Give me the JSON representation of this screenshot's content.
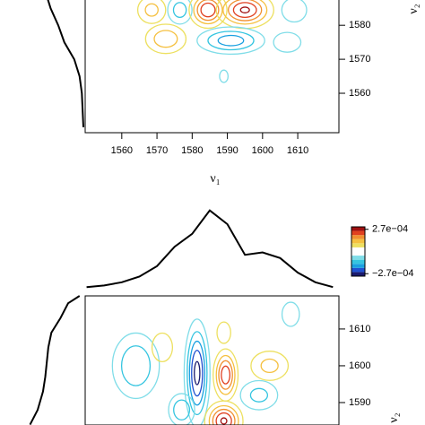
{
  "chart_data": [
    {
      "type": "contour",
      "xlabel": "ν₁",
      "ylabel": "ν₂",
      "xlim": [
        1549.6,
        1621.7
      ],
      "ylim": [
        1548.4,
        1590.6
      ],
      "xticks": [
        1560,
        1570,
        1580,
        1590,
        1600,
        1610
      ],
      "yticks": [
        1560,
        1570,
        1580
      ],
      "levels": [
        -0.00025,
        -0.0002,
        -0.00015,
        -0.0001,
        -5e-05,
        5e-05,
        0.0001,
        0.00015,
        0.0002,
        0.00025
      ],
      "level_colors": [
        "#1a1a6e",
        "#2050d0",
        "#1aa0e0",
        "#35c5e0",
        "#80dde8",
        "#ede060",
        "#f5c040",
        "#f09030",
        "#e04020",
        "#a01010"
      ],
      "peaks": [
        {
          "x": 1568.5,
          "y": 1584.5,
          "amp": 0.00012,
          "wx": 3,
          "wy": 3
        },
        {
          "x": 1576.5,
          "y": 1584.5,
          "amp": -0.00013,
          "wx": 2.5,
          "wy": 3
        },
        {
          "x": 1584.5,
          "y": 1584.5,
          "amp": 0.00025,
          "wx": 3,
          "wy": 3
        },
        {
          "x": 1595,
          "y": 1584.5,
          "amp": 0.00026,
          "wx": 4.5,
          "wy": 3
        },
        {
          "x": 1609,
          "y": 1584.5,
          "amp": -0.0001,
          "wx": 3,
          "wy": 3
        },
        {
          "x": 1572.5,
          "y": 1576,
          "amp": 0.00014,
          "wx": 4,
          "wy": 3
        },
        {
          "x": 1591,
          "y": 1575.5,
          "amp": -0.00018,
          "wx": 6,
          "wy": 2.5
        },
        {
          "x": 1589,
          "y": 1565,
          "amp": -6e-05,
          "wx": 2,
          "wy": 3
        },
        {
          "x": 1607,
          "y": 1575,
          "amp": -8e-05,
          "wx": 4,
          "wy": 3
        }
      ],
      "side_spectrum": {
        "x": [
          1550,
          1555,
          1560,
          1565,
          1570,
          1575,
          1580,
          1585,
          1590
        ],
        "values": [
          0,
          0.01,
          0.02,
          0.05,
          0.12,
          0.25,
          0.33,
          0.43,
          0.5
        ]
      }
    },
    {
      "type": "contour",
      "ylabel": "ν₂",
      "xlim": [
        1549.6,
        1621.7
      ],
      "ylim": [
        1583.9,
        1619
      ],
      "yticks": [
        1590,
        1600,
        1610
      ],
      "levels": [
        -0.00025,
        -0.0002,
        -0.00015,
        -0.0001,
        -5e-05,
        5e-05,
        0.0001,
        0.00015,
        0.0002,
        0.00025
      ],
      "level_colors": [
        "#1a1a6e",
        "#2050d0",
        "#1aa0e0",
        "#35c5e0",
        "#80dde8",
        "#ede060",
        "#f5c040",
        "#f09030",
        "#e04020",
        "#a01010"
      ],
      "peaks": [
        {
          "x": 1581.4,
          "y": 1598,
          "amp": -0.00027,
          "wx": 2,
          "wy": 8
        },
        {
          "x": 1589.5,
          "y": 1597.5,
          "amp": 0.00024,
          "wx": 2,
          "wy": 4
        },
        {
          "x": 1564,
          "y": 1600,
          "amp": -0.00015,
          "wx": 4.5,
          "wy": 6
        },
        {
          "x": 1571.5,
          "y": 1605,
          "amp": 8e-05,
          "wx": 3,
          "wy": 4
        },
        {
          "x": 1589,
          "y": 1585,
          "amp": 0.00026,
          "wx": 3,
          "wy": 3
        },
        {
          "x": 1602,
          "y": 1600,
          "amp": 0.00012,
          "wx": 4,
          "wy": 3
        },
        {
          "x": 1599,
          "y": 1592,
          "amp": -0.00012,
          "wx": 4,
          "wy": 3
        },
        {
          "x": 1608,
          "y": 1614,
          "amp": -7e-05,
          "wx": 3,
          "wy": 4
        },
        {
          "x": 1589,
          "y": 1609,
          "amp": 8e-05,
          "wx": 2,
          "wy": 3
        },
        {
          "x": 1577,
          "y": 1588,
          "amp": -0.00015,
          "wx": 2.5,
          "wy": 3
        }
      ],
      "top_spectrum": {
        "x": [
          1550,
          1555,
          1560,
          1565,
          1570,
          1575,
          1580,
          1585,
          1590,
          1595,
          1600,
          1605,
          1610,
          1615,
          1620
        ],
        "values": [
          0.02,
          0.04,
          0.08,
          0.15,
          0.28,
          0.52,
          0.68,
          0.97,
          0.8,
          0.42,
          0.45,
          0.38,
          0.2,
          0.08,
          0.02
        ]
      },
      "side_spectrum": {
        "x": [
          1584,
          1588,
          1593,
          1597,
          1601,
          1605,
          1609,
          1613,
          1617,
          1619
        ],
        "values": [
          0.7,
          0.6,
          0.53,
          0.5,
          0.48,
          0.46,
          0.42,
          0.3,
          0.2,
          0.05
        ]
      },
      "colorbar": {
        "zlim": [
          -0.0003,
          0.0003
        ],
        "ticks": [
          {
            "value": 0.00027,
            "label": "2.7e−04"
          },
          {
            "value": -0.00027,
            "label": "−2.7e−04"
          }
        ]
      }
    }
  ]
}
